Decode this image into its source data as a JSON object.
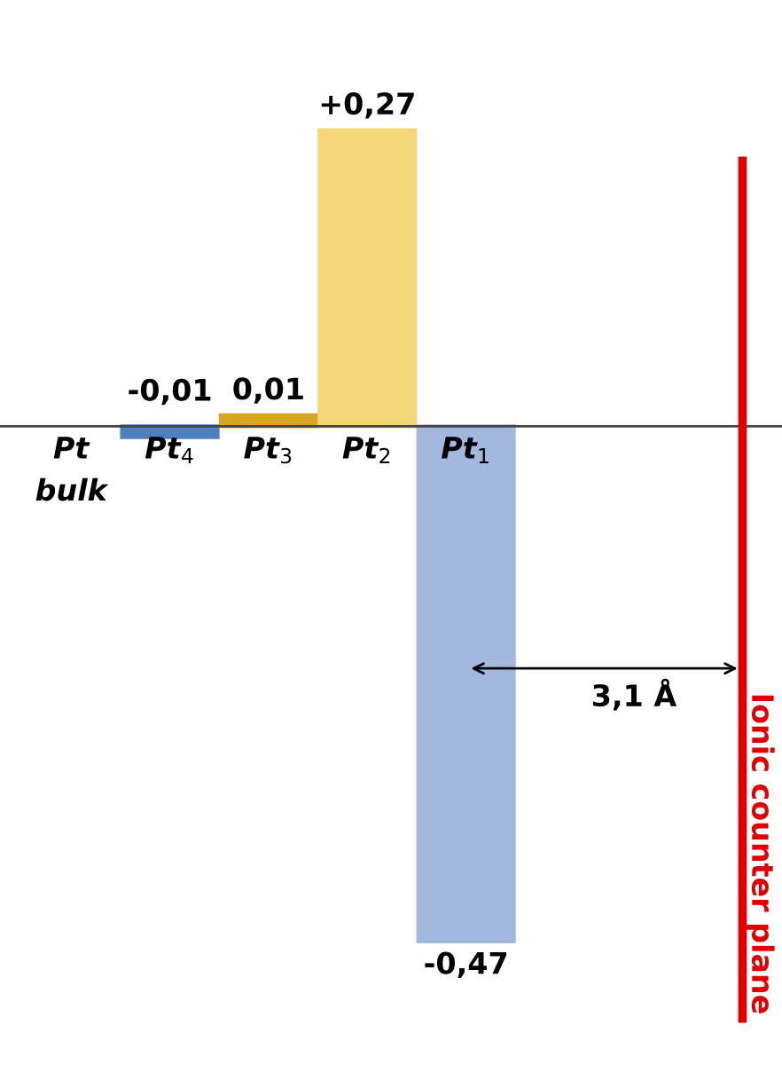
{
  "chart_data": {
    "type": "bar",
    "categories": [
      "Pt\nbulk",
      "Pt$_{4}$",
      "Pt$_{3}$",
      "Pt$_{2}$",
      "Pt$_{1}$"
    ],
    "values": [
      null,
      -0.01,
      0.01,
      0.27,
      -0.47
    ],
    "colors": [
      null,
      "#4f7fbf",
      "#d9a520",
      "#f5d77a",
      "#a3b8de"
    ],
    "value_labels": [
      null,
      "-0,01",
      "0,01",
      "+0,27",
      "-0,47"
    ],
    "tick_labels": "x",
    "annotations": [
      "3,1 Å",
      "Ionic counter plane"
    ]
  }
}
